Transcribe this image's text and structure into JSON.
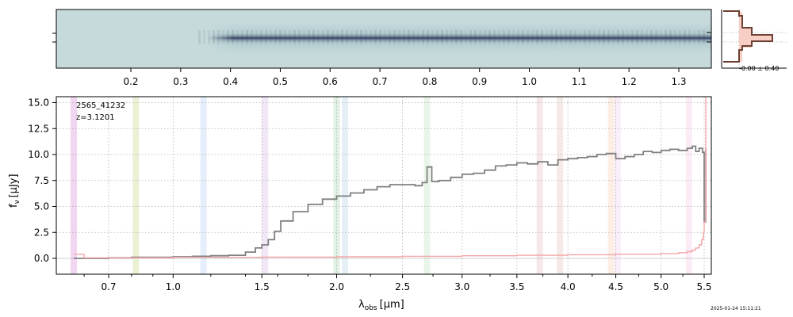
{
  "chart_data": [
    {
      "type": "heatmap",
      "panel": "2d-spectrum",
      "x_ticks": [
        "0.2",
        "0.3",
        "0.4",
        "0.5",
        "0.6",
        "0.7",
        "0.8",
        "0.9",
        "1.0",
        "1.1",
        "1.2",
        "1.3"
      ],
      "x_tick_values": [
        0.2,
        0.3,
        0.4,
        0.5,
        0.6,
        0.7,
        0.8,
        0.9,
        1.0,
        1.1,
        1.2,
        1.3
      ],
      "colormap": [
        "#c9dcdd",
        "#8fb3b8",
        "#3b3d66"
      ]
    },
    {
      "type": "line",
      "panel": "profile",
      "annotation": "-0.00 ± 0.40",
      "colors": {
        "profile": "#6e4134",
        "fill": "#f7c7bb"
      }
    },
    {
      "type": "line",
      "panel": "1d-spectrum",
      "annotations": [
        "2565_41232",
        "z=3.1201"
      ],
      "xlabel_main": "λ",
      "xlabel_sub": "obs",
      "xlabel_unit": "[μm]",
      "ylabel_main": "f",
      "ylabel_sub": "ν",
      "ylabel_unit": "[μJy]",
      "x_scale": "approximately sqrt of wavelength (non-linear)",
      "xlim": [
        0.55,
        5.55
      ],
      "ylim": [
        -1.5,
        15.5
      ],
      "x_ticks": [
        "0.7",
        "1.0",
        "1.5",
        "2.0",
        "2.5",
        "3.0",
        "3.5",
        "4.0",
        "4.5",
        "5.0",
        "5.5"
      ],
      "x_tick_values": [
        0.7,
        1.0,
        1.5,
        2.0,
        2.5,
        3.0,
        3.5,
        4.0,
        4.5,
        5.0,
        5.5
      ],
      "y_ticks": [
        "0.0",
        "2.5",
        "5.0",
        "7.5",
        "10.0",
        "12.5",
        "15.0"
      ],
      "y_tick_values": [
        0,
        2.5,
        5.0,
        7.5,
        10.0,
        12.5,
        15.0
      ],
      "grid": true,
      "series": [
        {
          "color": "#808080",
          "x": [
            0.56,
            0.62,
            0.7,
            0.8,
            0.9,
            1.0,
            1.1,
            1.2,
            1.3,
            1.4,
            1.46,
            1.5,
            1.54,
            1.58,
            1.62,
            1.7,
            1.8,
            1.9,
            2.0,
            2.1,
            2.2,
            2.3,
            2.4,
            2.5,
            2.6,
            2.66,
            2.7,
            2.74,
            2.8,
            2.9,
            3.0,
            3.1,
            3.2,
            3.3,
            3.4,
            3.5,
            3.6,
            3.7,
            3.8,
            3.9,
            4.0,
            4.1,
            4.2,
            4.3,
            4.4,
            4.5,
            4.6,
            4.7,
            4.8,
            4.9,
            5.0,
            5.1,
            5.2,
            5.3,
            5.36,
            5.4,
            5.44,
            5.48,
            5.5,
            5.52
          ],
          "y": [
            0.0,
            0.0,
            0.05,
            0.1,
            0.1,
            0.15,
            0.2,
            0.25,
            0.3,
            0.6,
            1.0,
            1.3,
            1.8,
            2.6,
            3.6,
            4.5,
            5.2,
            5.7,
            6.0,
            6.3,
            6.6,
            6.9,
            7.1,
            7.1,
            7.0,
            7.3,
            8.8,
            7.4,
            7.5,
            7.8,
            8.1,
            8.2,
            8.5,
            8.9,
            9.0,
            9.2,
            9.1,
            9.3,
            9.0,
            9.5,
            9.6,
            9.7,
            9.8,
            10.0,
            10.1,
            9.6,
            9.8,
            10.0,
            10.3,
            10.2,
            10.4,
            10.5,
            10.4,
            10.6,
            10.8,
            10.3,
            10.6,
            10.2,
            3.5,
            10.6
          ]
        },
        {
          "color": "#f4a6a6",
          "x": [
            0.56,
            0.6,
            0.7,
            1.0,
            1.5,
            2.0,
            2.5,
            3.0,
            3.5,
            4.0,
            4.5,
            5.0,
            5.2,
            5.3,
            5.36,
            5.4,
            5.44,
            5.47,
            5.49,
            5.5,
            5.52
          ],
          "y": [
            0.4,
            0.05,
            0.05,
            0.1,
            0.12,
            0.15,
            0.2,
            0.25,
            0.3,
            0.35,
            0.4,
            0.45,
            0.55,
            0.65,
            0.8,
            1.0,
            1.3,
            1.8,
            2.5,
            3.5,
            15.5
          ]
        }
      ],
      "line_markers": [
        {
          "x": 0.56,
          "color": "#e6b3e6"
        },
        {
          "x": 0.82,
          "color": "#d9e6b3"
        },
        {
          "x": 1.16,
          "color": "#cfe0f5"
        },
        {
          "x": 1.52,
          "color": "#e6d3f0"
        },
        {
          "x": 2.0,
          "color": "#c9e6cc"
        },
        {
          "x": 2.06,
          "color": "#cfe3ef"
        },
        {
          "x": 2.7,
          "color": "#d6ecd6"
        },
        {
          "x": 3.72,
          "color": "#efd3d6"
        },
        {
          "x": 3.92,
          "color": "#efd9d6"
        },
        {
          "x": 4.45,
          "color": "#fbe0d0"
        },
        {
          "x": 4.52,
          "color": "#f5e0f5"
        },
        {
          "x": 5.32,
          "color": "#f8dcef"
        }
      ]
    }
  ],
  "footer": {
    "timestamp": "2025-01-24 15:11:21"
  }
}
